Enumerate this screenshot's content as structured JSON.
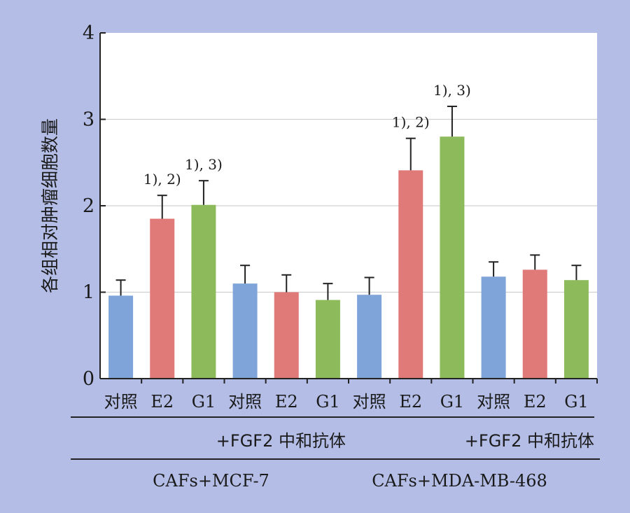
{
  "chart_data": {
    "type": "bar",
    "ylabel": "各组相对肿瘤细胞数量",
    "ylim": [
      0,
      4
    ],
    "yticks": [
      0,
      1,
      2,
      3,
      4
    ],
    "grid": true,
    "categories": [
      "对照",
      "E2",
      "G1",
      "对照",
      "E2",
      "G1",
      "对照",
      "E2",
      "G1",
      "对照",
      "E2",
      "G1"
    ],
    "values": [
      0.96,
      1.85,
      2.01,
      1.1,
      1.0,
      0.91,
      0.97,
      2.41,
      2.8,
      1.18,
      1.26,
      1.14
    ],
    "errors": [
      0.18,
      0.27,
      0.28,
      0.21,
      0.2,
      0.19,
      0.2,
      0.37,
      0.35,
      0.17,
      0.17,
      0.17
    ],
    "annotations": [
      "",
      "1), 2)",
      "1), 3)",
      "",
      "",
      "",
      "",
      "1), 2)",
      "1), 3)",
      "",
      "",
      ""
    ],
    "bar_colors": [
      "#7fa4d9",
      "#e07a78",
      "#8dbb5c",
      "#7fa4d9",
      "#e07a78",
      "#8dbb5c",
      "#7fa4d9",
      "#e07a78",
      "#8dbb5c",
      "#7fa4d9",
      "#e07a78",
      "#8dbb5c"
    ],
    "treatment_groups": [
      {
        "label": "",
        "from": 0,
        "to": 2
      },
      {
        "label": "+FGF2 中和抗体",
        "from": 3,
        "to": 5
      },
      {
        "label": "",
        "from": 6,
        "to": 8
      },
      {
        "label": "+FGF2 中和抗体",
        "from": 9,
        "to": 11
      }
    ],
    "cell_groups": [
      {
        "label": "CAFs+MCF-7",
        "from": 0,
        "to": 5
      },
      {
        "label": "CAFs+MDA-MB-468",
        "from": 6,
        "to": 11
      }
    ]
  },
  "colors": {
    "background": "#b3bde6",
    "plot_bg": "#ffffff",
    "grid": "#d0d0d0"
  }
}
